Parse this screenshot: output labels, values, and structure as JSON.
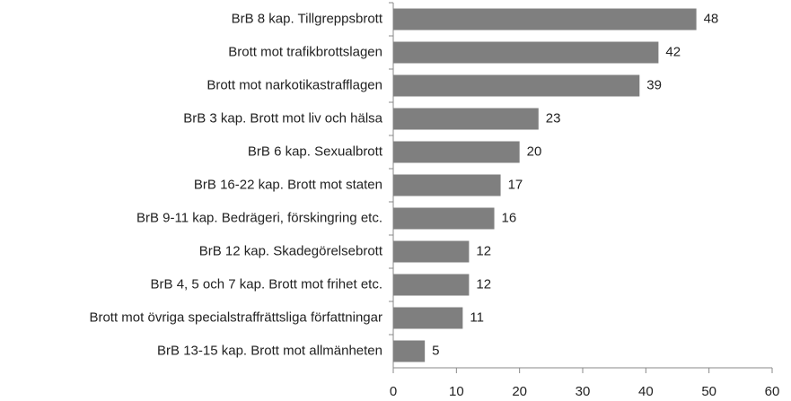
{
  "chart_data": {
    "type": "barh",
    "categories": [
      "BrB 8 kap. Tillgreppsbrott",
      "Brott mot trafikbrottslagen",
      "Brott mot narkotikastrafflagen",
      "BrB 3 kap. Brott mot liv och hälsa",
      "BrB 6 kap. Sexualbrott",
      "BrB 16-22 kap. Brott mot staten",
      "BrB 9-11 kap. Bedrägeri, förskingring etc.",
      "BrB 12 kap. Skadegörelsebrott",
      "BrB 4, 5 och 7 kap. Brott mot frihet etc.",
      "Brott mot övriga specialstraffrättsliga författningar",
      "BrB 13-15 kap. Brott mot allmänheten"
    ],
    "values": [
      48,
      42,
      39,
      23,
      20,
      17,
      16,
      12,
      12,
      11,
      5
    ],
    "color": "#7f7f7f",
    "xlim": [
      0,
      60
    ],
    "xticks": [
      0,
      10,
      20,
      30,
      40,
      50,
      60
    ],
    "grid": false
  }
}
